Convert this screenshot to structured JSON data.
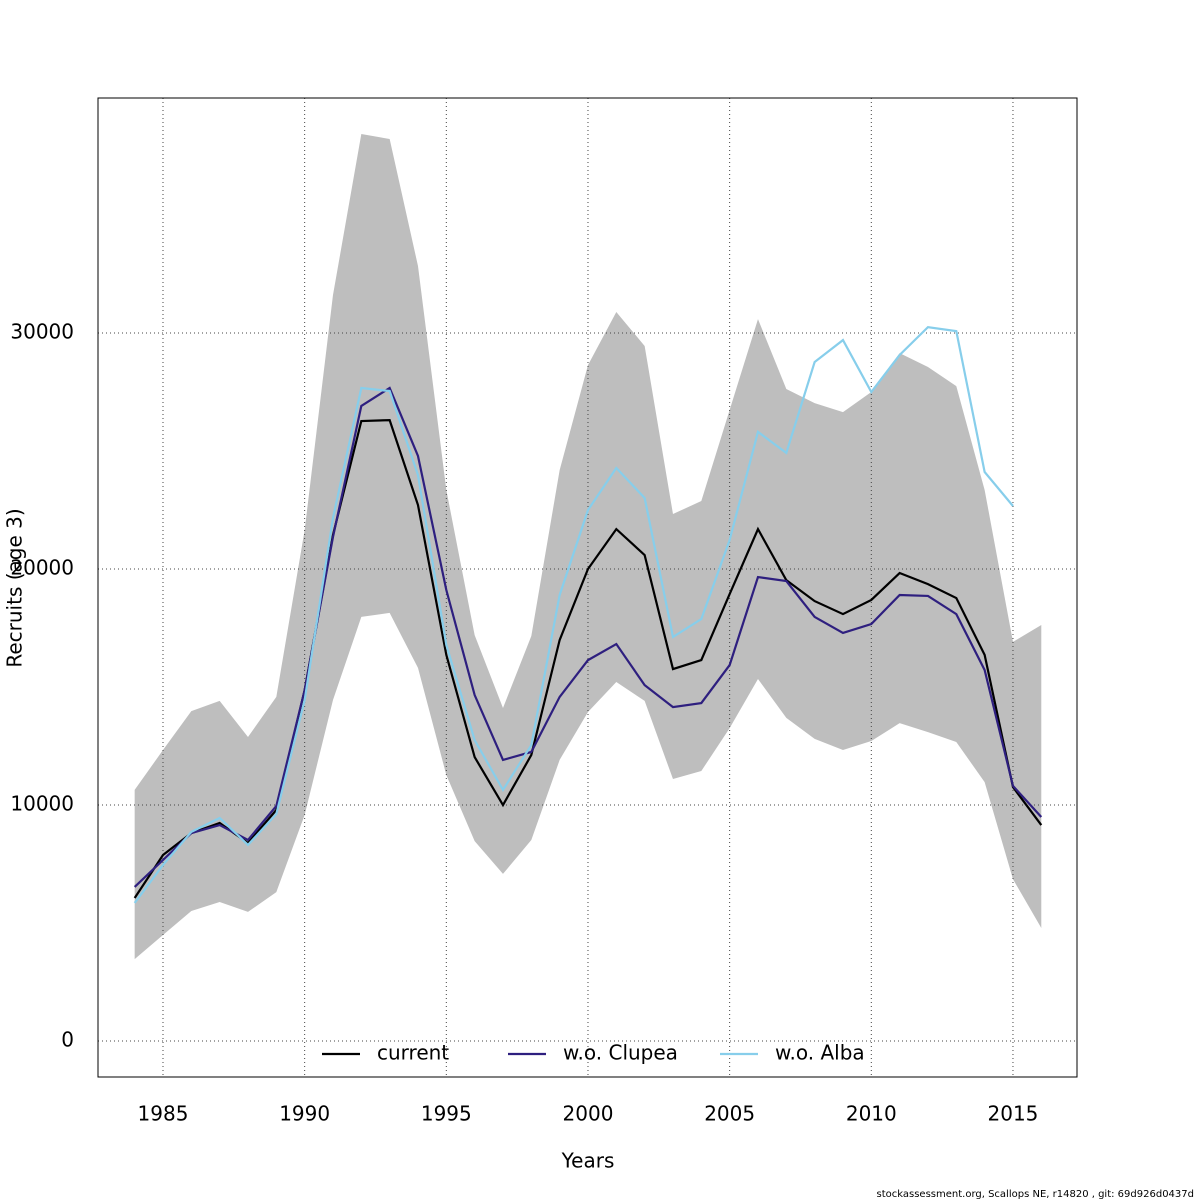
{
  "chart_data": {
    "type": "line",
    "xlabel": "Years",
    "ylabel": "Recruits (age 3)",
    "footer": "stockassessment.org, Scallops NE, r14820 , git: 69d926d0437d",
    "x": [
      1984,
      1985,
      1986,
      1987,
      1988,
      1989,
      1990,
      1991,
      1992,
      1993,
      1994,
      1995,
      1996,
      1997,
      1998,
      1999,
      2000,
      2001,
      2002,
      2003,
      2004,
      2005,
      2006,
      2007,
      2008,
      2009,
      2010,
      2011,
      2012,
      2013,
      2014,
      2015,
      2016
    ],
    "band": {
      "color": "#bebebe",
      "upper": [
        10640,
        12330,
        13980,
        14410,
        12880,
        14580,
        21650,
        31610,
        38430,
        38220,
        32840,
        23350,
        17200,
        14110,
        17160,
        24190,
        28640,
        30890,
        29450,
        22330,
        22880,
        26740,
        30590,
        27630,
        27030,
        26650,
        27500,
        29150,
        28560,
        27750,
        23350,
        16910,
        17630
      ],
      "lower": [
        3470,
        4490,
        5510,
        5890,
        5470,
        6310,
        9580,
        14450,
        17970,
        18140,
        15810,
        11270,
        8470,
        7080,
        8520,
        11910,
        13940,
        15210,
        14410,
        11100,
        11440,
        13260,
        15340,
        13690,
        12800,
        12330,
        12710,
        13470,
        13090,
        12670,
        10970,
        6860,
        4790
      ]
    },
    "series": [
      {
        "name": "current",
        "color": "#000000",
        "values": [
          6059,
          7880,
          8810,
          9240,
          8390,
          9790,
          14870,
          21440,
          26270,
          26310,
          22710,
          16360,
          12030,
          10000,
          12120,
          16990,
          20000,
          21690,
          20590,
          15760,
          16140,
          18940,
          21690,
          19530,
          18640,
          18090,
          18690,
          19830,
          19360,
          18770,
          16360,
          10760,
          9150
        ]
      },
      {
        "name": "w.o. Clupea",
        "color": "#2e1f7f",
        "values": [
          6530,
          7670,
          8810,
          9150,
          8520,
          9960,
          14870,
          21360,
          26910,
          27670,
          24790,
          19110,
          14660,
          11910,
          12250,
          14580,
          16140,
          16820,
          15080,
          14150,
          14320,
          15930,
          19660,
          19490,
          17970,
          17290,
          17670,
          18900,
          18860,
          18090,
          15720,
          10810,
          9490
        ]
      },
      {
        "name": "w.o. Alba",
        "color": "#87ceeb",
        "values": [
          5850,
          7460,
          8860,
          9450,
          8310,
          9620,
          14450,
          22160,
          27670,
          27540,
          23980,
          16780,
          12750,
          10640,
          12540,
          18900,
          22500,
          24280,
          23010,
          17120,
          17880,
          21230,
          25810,
          24920,
          28770,
          29700,
          27500,
          29070,
          30250,
          30080,
          24110,
          22670,
          null
        ]
      }
    ],
    "xlim": [
      1982.706,
      2017.26
    ],
    "xticks": [
      1985,
      1990,
      1995,
      2000,
      2005,
      2010,
      2015
    ],
    "ylim": [
      -1525,
      39958
    ],
    "yticks": [
      0,
      10000,
      20000,
      30000
    ],
    "grid": true,
    "legend": "bottom"
  }
}
